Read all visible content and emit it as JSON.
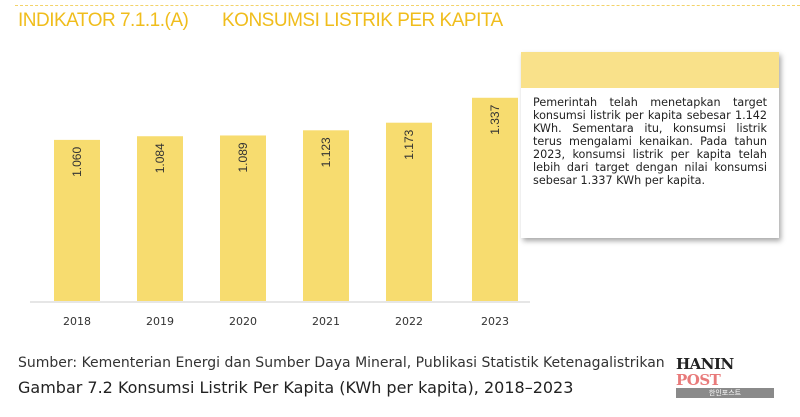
{
  "header": {
    "indicator": "INDIKATOR 7.1.1.(A)",
    "title": "KONSUMSI LISTRIK PER KAPITA"
  },
  "chart_data": {
    "type": "bar",
    "title": "Konsumsi Listrik Per Kapita (KWh per kapita), 2018–2023",
    "categories": [
      "2018",
      "2019",
      "2020",
      "2021",
      "2022",
      "2023"
    ],
    "values": [
      1060,
      1084,
      1089,
      1123,
      1173,
      1337
    ],
    "value_labels": [
      "1.060",
      "1.084",
      "1.089",
      "1.123",
      "1.173",
      "1.337"
    ],
    "xlabel": "",
    "ylabel": "",
    "ylim": [
      0,
      1400
    ],
    "bar_color": "#f7dc6f",
    "grid": false
  },
  "note": {
    "text": "Pemerintah telah menetapkan target konsumsi listrik per kapita sebesar 1.142 KWh. Sementara itu, konsumsi listrik terus mengalami kenaikan. Pada tahun 2023, konsumsi listrik per kapita telah lebih dari target dengan nilai konsumsi sebesar 1.337 KWh per kapita."
  },
  "source": "Sumber:   Kementerian Energi dan Sumber Daya Mineral, Publikasi Statistik Ketenagalistrikan",
  "caption": "Gambar 7.2     Konsumsi Listrik Per Kapita (KWh per kapita), 2018–2023",
  "watermark": {
    "name": "HANIN POST",
    "korean": "한인포스트"
  }
}
